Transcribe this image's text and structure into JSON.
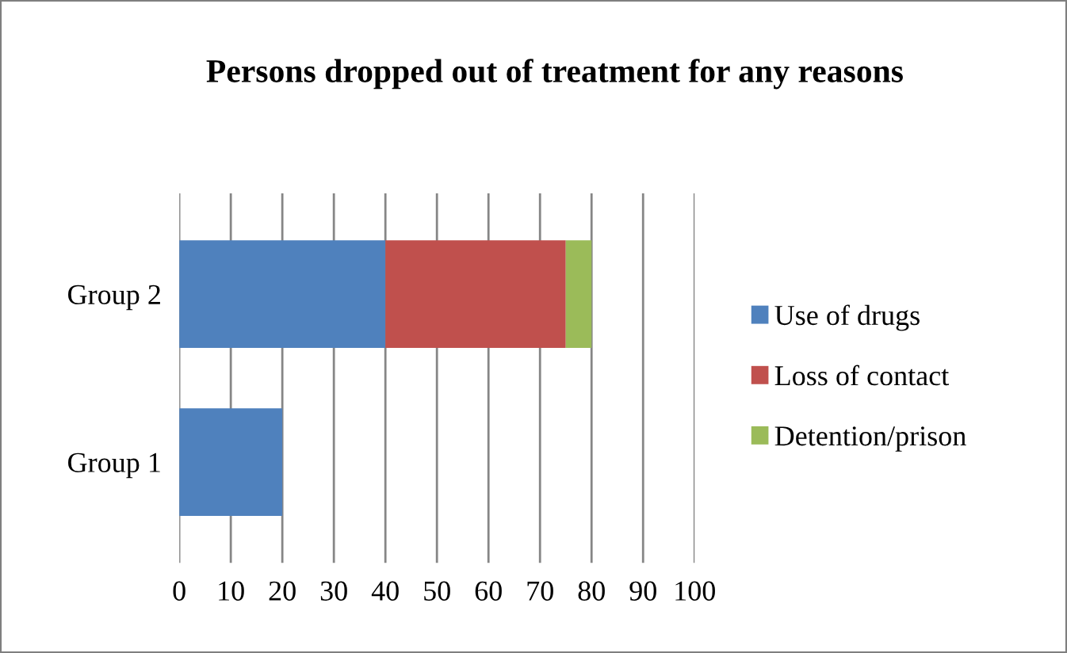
{
  "chart_data": {
    "type": "bar",
    "orientation": "horizontal",
    "stacked": true,
    "title": "Persons dropped out of treatment for any reasons",
    "categories": [
      "Group 2",
      "Group 1"
    ],
    "series": [
      {
        "name": "Use of drugs",
        "color": "#4f81bd",
        "values": [
          40,
          20
        ]
      },
      {
        "name": "Loss of contact",
        "color": "#c0504d",
        "values": [
          35,
          0
        ]
      },
      {
        "name": "Detention/prison",
        "color": "#9bbb59",
        "values": [
          5,
          0
        ]
      }
    ],
    "xlim": [
      0,
      100
    ],
    "xticks": [
      0,
      10,
      20,
      30,
      40,
      50,
      60,
      70,
      80,
      90,
      100
    ],
    "grid": "x",
    "legend": "right"
  }
}
